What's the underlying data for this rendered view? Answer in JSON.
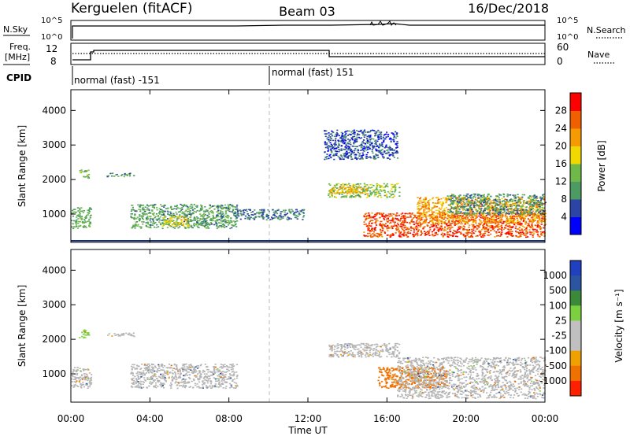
{
  "header": {
    "station": "Kerguelen (fitACF)",
    "beam": "Beam 03",
    "date": "16/Dec/2018"
  },
  "top_panels": {
    "nsky_label": "N.Sky",
    "nsearch_label": "N.Search",
    "nsky_ticks": [
      "10^5",
      "10^0"
    ],
    "nsearch_ticks": [
      "10^5",
      "10^0"
    ],
    "freq_label_1": "Freq.",
    "freq_label_2": "[MHz]",
    "freq_ticks": [
      "12",
      "8"
    ],
    "nave_label": "Nave",
    "nave_ticks": [
      "60",
      "0"
    ],
    "cpid_label": "CPID",
    "cpid_segments": [
      {
        "label": "normal (fast) -151",
        "start_hour": 0
      },
      {
        "label": "normal (fast) 151",
        "start_hour": 10
      }
    ]
  },
  "colors": {
    "power_scale": [
      "#0000ff",
      "#2b44a6",
      "#4d9a63",
      "#6fb84a",
      "#f0d800",
      "#f59a00",
      "#f06000",
      "#ff0000"
    ],
    "velocity_scale": [
      "#2040c0",
      "#2b55a0",
      "#3a8a3a",
      "#7cd040",
      "#c0c0c0",
      "#f0a000",
      "#f07000",
      "#ff2000",
      "#ff0000"
    ],
    "ground_scatter": "#b5b5b5"
  },
  "chart_data": [
    {
      "type": "heatmap",
      "name": "power",
      "ylabel": "Slant Range [km]",
      "xlabel": "",
      "xlim": [
        0,
        24
      ],
      "ylim": [
        180,
        4600
      ],
      "yticks": [
        1000,
        2000,
        3000,
        4000
      ],
      "x_ticks": [
        "00:00",
        "04:00",
        "08:00",
        "12:00",
        "16:00",
        "20:00",
        "00:00"
      ],
      "colorbar_label": "Power [dB]",
      "colorbar_ticks": [
        4,
        8,
        12,
        16,
        20,
        24,
        28
      ],
      "colorbar_range": [
        0,
        32
      ],
      "scatter_regions": [
        {
          "t0": 0.0,
          "t1": 1.0,
          "r0": 600,
          "r1": 1200,
          "value": 12
        },
        {
          "t0": 0.4,
          "t1": 0.9,
          "r0": 2050,
          "r1": 2300,
          "value": 14
        },
        {
          "t0": 1.8,
          "t1": 3.2,
          "r0": 2100,
          "r1": 2200,
          "value": 10
        },
        {
          "t0": 3.0,
          "t1": 8.4,
          "r0": 600,
          "r1": 1300,
          "value": 11
        },
        {
          "t0": 4.6,
          "t1": 6.0,
          "r0": 650,
          "r1": 950,
          "value": 18
        },
        {
          "t0": 8.3,
          "t1": 11.8,
          "r0": 850,
          "r1": 1150,
          "value": 8
        },
        {
          "t0": 13.0,
          "t1": 16.6,
          "r0": 1500,
          "r1": 1900,
          "value": 14
        },
        {
          "t0": 13.0,
          "t1": 15.0,
          "r0": 1600,
          "r1": 1800,
          "value": 20
        },
        {
          "t0": 12.8,
          "t1": 16.5,
          "r0": 2600,
          "r1": 3450,
          "value": 6
        },
        {
          "t0": 14.8,
          "t1": 24.0,
          "r0": 350,
          "r1": 1050,
          "value": 27
        },
        {
          "t0": 17.5,
          "t1": 24.0,
          "r0": 750,
          "r1": 1500,
          "value": 22
        },
        {
          "t0": 19.0,
          "t1": 24.0,
          "r0": 1000,
          "r1": 1600,
          "value": 10
        }
      ]
    },
    {
      "type": "heatmap",
      "name": "velocity",
      "ylabel": "Slant Range [km]",
      "xlabel": "Time UT",
      "xlim": [
        0,
        24
      ],
      "ylim": [
        180,
        4600
      ],
      "yticks": [
        1000,
        2000,
        3000,
        4000
      ],
      "x_ticks": [
        "00:00",
        "04:00",
        "08:00",
        "12:00",
        "16:00",
        "20:00",
        "00:00"
      ],
      "colorbar_label": "Velocity [m s⁻¹]",
      "colorbar_ticks": [
        "1000",
        "500",
        "100",
        "25",
        "-25",
        "-100",
        "-500",
        "-1000"
      ],
      "scatter_regions": [
        {
          "t0": 0.0,
          "t1": 1.0,
          "r0": 600,
          "r1": 1200,
          "value": 0
        },
        {
          "t0": 0.4,
          "t1": 0.9,
          "r0": 2050,
          "r1": 2300,
          "value": 50
        },
        {
          "t0": 1.8,
          "t1": 3.2,
          "r0": 2100,
          "r1": 2200,
          "value": 0
        },
        {
          "t0": 3.0,
          "t1": 8.4,
          "r0": 600,
          "r1": 1300,
          "value": 0
        },
        {
          "t0": 13.0,
          "t1": 16.6,
          "r0": 1500,
          "r1": 1900,
          "value": 0
        },
        {
          "t0": 15.5,
          "t1": 19.0,
          "r0": 600,
          "r1": 1200,
          "value": -150
        },
        {
          "t0": 16.5,
          "t1": 24.0,
          "r0": 300,
          "r1": 1500,
          "value": 0
        }
      ]
    }
  ]
}
